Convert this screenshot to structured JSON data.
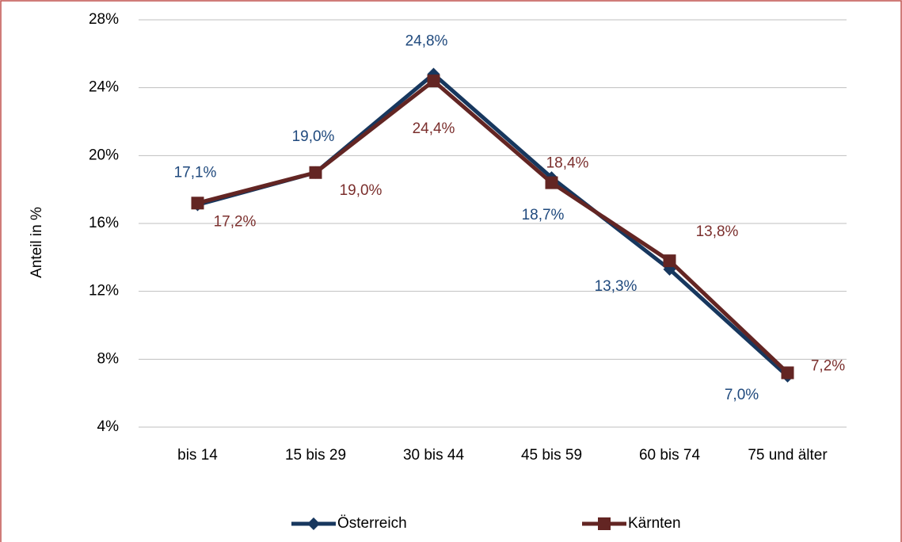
{
  "chart_data": {
    "type": "line",
    "y_label": "Anteil in %",
    "categories": [
      "bis 14",
      "15 bis 29",
      "30 bis 44",
      "45 bis 59",
      "60 bis 74",
      "75 und älter"
    ],
    "series": [
      {
        "name": "Österreich",
        "color": "#17375e",
        "label_color": "#1f497d",
        "marker": "diamond",
        "values": [
          17.1,
          19.0,
          24.8,
          18.7,
          13.3,
          7.0
        ],
        "value_labels": [
          "17,1%",
          "19,0%",
          "24,8%",
          "18,7%",
          "13,3%",
          "7,0%"
        ]
      },
      {
        "name": "Kärnten",
        "color": "#632523",
        "label_color": "#7b2f2d",
        "marker": "square",
        "values": [
          17.2,
          19.0,
          24.4,
          18.4,
          13.8,
          7.2
        ],
        "value_labels": [
          "17,2%",
          "19,0%",
          "24,4%",
          "18,4%",
          "13,8%",
          "7,2%"
        ]
      }
    ],
    "ylim": [
      4,
      28
    ],
    "yticks": [
      {
        "value": 4,
        "label": "4%"
      },
      {
        "value": 8,
        "label": "8%"
      },
      {
        "value": 12,
        "label": "12%"
      },
      {
        "value": 16,
        "label": "16%"
      },
      {
        "value": 20,
        "label": "20%"
      },
      {
        "value": 24,
        "label": "24%"
      },
      {
        "value": 28,
        "label": "28%"
      }
    ],
    "grid": true,
    "legend": "bottom"
  }
}
